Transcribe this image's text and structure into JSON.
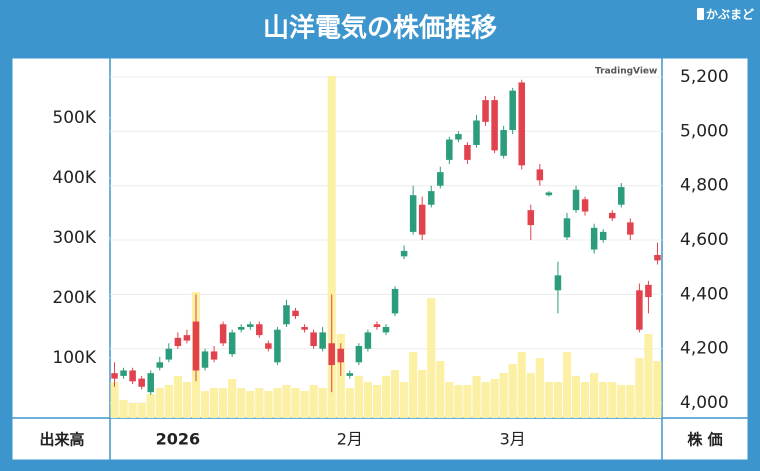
{
  "header": {
    "title": "山洋電気の株価推移",
    "logo": "かぶまど"
  },
  "chart_data": {
    "type": "candlestick",
    "watermark": "TradingView",
    "categories": [
      null,
      null,
      null,
      null,
      null,
      null,
      null,
      "2026",
      null,
      null,
      null,
      null,
      null,
      null,
      null,
      null,
      null,
      null,
      null,
      null,
      null,
      null,
      null,
      null,
      null,
      null,
      "2月",
      null,
      null,
      null,
      null,
      null,
      null,
      null,
      null,
      null,
      null,
      null,
      null,
      null,
      null,
      null,
      null,
      null,
      "3月",
      null,
      null,
      null,
      null,
      null,
      null,
      null,
      null,
      null,
      null,
      null,
      null,
      null,
      null,
      null,
      null
    ],
    "open": [
      4110,
      4100,
      4120,
      4090,
      4040,
      4130,
      4160,
      4240,
      4250,
      4300,
      4130,
      4190,
      4290,
      4180,
      4270,
      4280,
      4290,
      4220,
      4150,
      4290,
      4340,
      4280,
      4260,
      4200,
      4220,
      4200,
      4100,
      4150,
      4200,
      4290,
      4260,
      4330,
      4540,
      4630,
      4730,
      4730,
      4800,
      4895,
      4970,
      4950,
      4950,
      5115,
      5115,
      4910,
      5005,
      5180,
      4710,
      4860,
      4765,
      4415,
      4610,
      4710,
      4750,
      4565,
      4600,
      4700,
      4730,
      4665,
      4415,
      4435,
      4545
    ],
    "high": [
      4150,
      4130,
      4130,
      4100,
      4120,
      4170,
      4220,
      4260,
      4270,
      4400,
      4200,
      4210,
      4300,
      4270,
      4290,
      4300,
      4300,
      4230,
      4280,
      4380,
      4350,
      4290,
      4270,
      4280,
      4400,
      4220,
      4120,
      4220,
      4270,
      4300,
      4290,
      4430,
      4580,
      4800,
      4760,
      4800,
      4870,
      4980,
      5000,
      4960,
      5060,
      5130,
      5130,
      5020,
      5160,
      5190,
      4730,
      4880,
      4780,
      4520,
      4700,
      4800,
      4760,
      4660,
      4640,
      4710,
      4810,
      4680,
      4440,
      4450,
      4590
    ],
    "low": [
      4060,
      4090,
      4070,
      4050,
      4030,
      4120,
      4150,
      4200,
      4220,
      4080,
      4120,
      4150,
      4210,
      4170,
      4260,
      4270,
      4240,
      4190,
      4140,
      4280,
      4310,
      4260,
      4200,
      4190,
      4040,
      4100,
      4090,
      4140,
      4190,
      4270,
      4250,
      4320,
      4530,
      4620,
      4600,
      4720,
      4790,
      4880,
      4960,
      4880,
      4940,
      5020,
      4920,
      4900,
      4990,
      4860,
      4600,
      4800,
      4760,
      4330,
      4600,
      4700,
      4690,
      4550,
      4590,
      4670,
      4720,
      4600,
      4260,
      4330,
      4510
    ],
    "close": [
      4090,
      4120,
      4080,
      4060,
      4110,
      4150,
      4200,
      4210,
      4230,
      4120,
      4190,
      4160,
      4220,
      4260,
      4280,
      4290,
      4250,
      4200,
      4270,
      4360,
      4320,
      4270,
      4210,
      4260,
      4140,
      4150,
      4110,
      4210,
      4260,
      4280,
      4280,
      4420,
      4560,
      4765,
      4620,
      4780,
      4850,
      4970,
      4990,
      4895,
      5040,
      5035,
      4930,
      5005,
      5150,
      4875,
      4655,
      4820,
      4775,
      4470,
      4680,
      4785,
      4705,
      4645,
      4630,
      4680,
      4795,
      4620,
      4270,
      4390,
      4525
    ],
    "up_color": "#2b9c7c",
    "down_color": "#e0434d",
    "ylim": [
      3945,
      5270
    ],
    "yticks": [
      {
        "value": 4000,
        "label": "4,000"
      },
      {
        "value": 4200,
        "label": "4,200"
      },
      {
        "value": 4400,
        "label": "4,400"
      },
      {
        "value": 4600,
        "label": "4,600"
      },
      {
        "value": 4800,
        "label": "4,800"
      },
      {
        "value": 5000,
        "label": "5,000"
      },
      {
        "value": 5200,
        "label": "5,200"
      }
    ],
    "y_axis_label": "株 価",
    "volume": {
      "values": [
        60000,
        30000,
        25000,
        25000,
        40000,
        50000,
        55000,
        70000,
        60000,
        210000,
        45000,
        50000,
        50000,
        65000,
        50000,
        45000,
        50000,
        45000,
        50000,
        55000,
        50000,
        45000,
        55000,
        50000,
        570000,
        140000,
        50000,
        70000,
        60000,
        55000,
        70000,
        80000,
        60000,
        110000,
        80000,
        200000,
        95000,
        60000,
        55000,
        55000,
        70000,
        60000,
        65000,
        75000,
        90000,
        110000,
        75000,
        100000,
        60000,
        60000,
        110000,
        70000,
        60000,
        75000,
        60000,
        60000,
        55000,
        55000,
        100000,
        140000,
        95000
      ],
      "color": "#fbf0a3",
      "ylim": [
        0,
        600000
      ],
      "yticks": [
        {
          "value": 100000,
          "label": "100K"
        },
        {
          "value": 200000,
          "label": "200K"
        },
        {
          "value": 300000,
          "label": "300K"
        },
        {
          "value": 400000,
          "label": "400K"
        },
        {
          "value": 500000,
          "label": "500K"
        }
      ],
      "axis_label": "出来高"
    },
    "grid": true
  }
}
